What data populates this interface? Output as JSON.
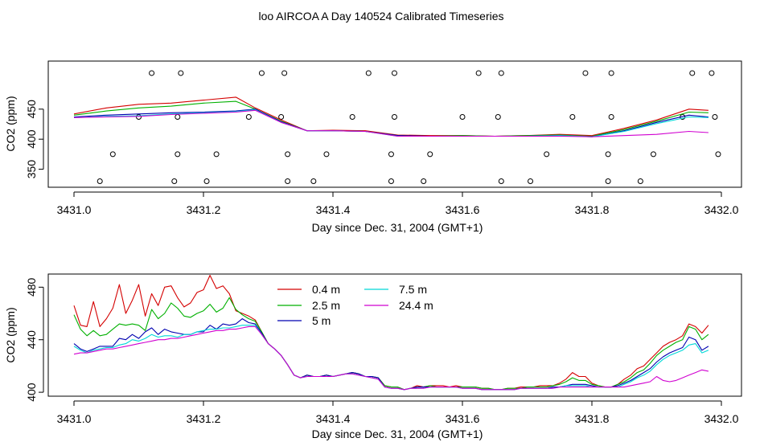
{
  "title": "loo AIRCOA A  Day 140524  Calibrated Timeseries",
  "chart_data": [
    {
      "type": "line",
      "xlabel": "Day since Dec. 31, 2004 (GMT+1)",
      "ylabel": "CO2 (ppm)",
      "xlim": [
        3431.0,
        3432.0
      ],
      "ylim": [
        320,
        530
      ],
      "xticks": [
        3431.0,
        3431.2,
        3431.4,
        3431.6,
        3431.8,
        3432.0
      ],
      "xtick_labels": [
        "3431.0",
        "3431.2",
        "3431.4",
        "3431.6",
        "3431.8",
        "3432.0"
      ],
      "yticks": [
        350,
        400,
        450
      ],
      "ytick_labels": [
        "350",
        "400",
        "450"
      ],
      "grid": false,
      "legend": "none",
      "x": [
        3431.0,
        3431.05,
        3431.1,
        3431.15,
        3431.2,
        3431.25,
        3431.28,
        3431.32,
        3431.36,
        3431.4,
        3431.45,
        3431.5,
        3431.55,
        3431.6,
        3431.65,
        3431.7,
        3431.75,
        3431.8,
        3431.85,
        3431.9,
        3431.95,
        3431.98
      ],
      "series": [
        {
          "color": "#d40000",
          "values": [
            442,
            452,
            458,
            460,
            465,
            470,
            452,
            432,
            414,
            415,
            414,
            407,
            406,
            406,
            405,
            406,
            408,
            406,
            418,
            432,
            450,
            448
          ]
        },
        {
          "color": "#00b000",
          "values": [
            440,
            447,
            452,
            455,
            460,
            463,
            450,
            430,
            414,
            414,
            413,
            406,
            405,
            406,
            405,
            406,
            407,
            405,
            416,
            430,
            445,
            444
          ]
        },
        {
          "color": "#0000b0",
          "values": [
            437,
            440,
            442,
            444,
            445,
            447,
            450,
            429,
            414,
            414,
            413,
            406,
            405,
            405,
            405,
            405,
            406,
            404,
            414,
            428,
            440,
            437
          ]
        },
        {
          "color": "#00d8d8",
          "values": [
            436,
            438,
            439,
            442,
            444,
            446,
            449,
            428,
            414,
            414,
            413,
            405,
            405,
            405,
            405,
            405,
            406,
            404,
            413,
            426,
            437,
            436
          ]
        },
        {
          "color": "#d000d0",
          "values": [
            436,
            437,
            438,
            441,
            443,
            445,
            448,
            428,
            414,
            414,
            413,
            405,
            405,
            405,
            405,
            405,
            405,
            404,
            406,
            408,
            413,
            411
          ]
        }
      ],
      "markers_x": [
        3431.04,
        3431.06,
        3431.1,
        3431.12,
        3431.155,
        3431.16,
        3431.16,
        3431.165,
        3431.205,
        3431.22,
        3431.27,
        3431.29,
        3431.32,
        3431.325,
        3431.33,
        3431.33,
        3431.37,
        3431.39,
        3431.43,
        3431.455,
        3431.49,
        3431.49,
        3431.495,
        3431.495,
        3431.54,
        3431.55,
        3431.6,
        3431.625,
        3431.655,
        3431.66,
        3431.66,
        3431.705,
        3431.73,
        3431.77,
        3431.79,
        3431.825,
        3431.825,
        3431.83,
        3431.83,
        3431.875,
        3431.895,
        3431.94,
        3431.955,
        3431.985,
        3431.99,
        3431.995
      ],
      "markers_y": [
        330,
        375,
        437,
        510,
        330,
        375,
        437,
        510,
        330,
        375,
        437,
        510,
        437,
        510,
        375,
        330,
        330,
        375,
        437,
        510,
        330,
        375,
        437,
        510,
        330,
        375,
        437,
        510,
        437,
        510,
        330,
        330,
        375,
        437,
        510,
        375,
        330,
        437,
        510,
        330,
        375,
        437,
        510,
        510,
        437,
        375
      ]
    },
    {
      "type": "line",
      "xlabel": "Day since Dec. 31, 2004 (GMT+1)",
      "ylabel": "CO2 (ppm)",
      "xlim": [
        3431.0,
        3432.0
      ],
      "ylim": [
        397,
        490
      ],
      "xticks": [
        3431.0,
        3431.2,
        3431.4,
        3431.6,
        3431.8,
        3432.0
      ],
      "xtick_labels": [
        "3431.0",
        "3431.2",
        "3431.4",
        "3431.6",
        "3431.8",
        "3432.0"
      ],
      "yticks": [
        400,
        440,
        480
      ],
      "ytick_labels": [
        "400",
        "440",
        "480"
      ],
      "grid": false,
      "legend": "top-left",
      "x": [
        3431.0,
        3431.01,
        3431.02,
        3431.03,
        3431.04,
        3431.05,
        3431.06,
        3431.07,
        3431.08,
        3431.09,
        3431.1,
        3431.11,
        3431.12,
        3431.13,
        3431.14,
        3431.15,
        3431.16,
        3431.17,
        3431.18,
        3431.19,
        3431.2,
        3431.21,
        3431.22,
        3431.23,
        3431.24,
        3431.25,
        3431.26,
        3431.27,
        3431.28,
        3431.29,
        3431.3,
        3431.31,
        3431.32,
        3431.33,
        3431.34,
        3431.35,
        3431.36,
        3431.37,
        3431.38,
        3431.39,
        3431.4,
        3431.41,
        3431.42,
        3431.43,
        3431.44,
        3431.45,
        3431.46,
        3431.47,
        3431.48,
        3431.49,
        3431.5,
        3431.51,
        3431.52,
        3431.53,
        3431.54,
        3431.55,
        3431.56,
        3431.57,
        3431.58,
        3431.59,
        3431.6,
        3431.61,
        3431.62,
        3431.63,
        3431.64,
        3431.65,
        3431.66,
        3431.67,
        3431.68,
        3431.69,
        3431.7,
        3431.71,
        3431.72,
        3431.73,
        3431.74,
        3431.75,
        3431.76,
        3431.77,
        3431.78,
        3431.79,
        3431.8,
        3431.81,
        3431.82,
        3431.83,
        3431.84,
        3431.85,
        3431.86,
        3431.87,
        3431.88,
        3431.89,
        3431.9,
        3431.91,
        3431.92,
        3431.93,
        3431.94,
        3431.95,
        3431.96,
        3431.97,
        3431.98
      ],
      "series": [
        {
          "name": "0.4 m",
          "color": "#d40000",
          "values": [
            466,
            451,
            450,
            469,
            450,
            456,
            464,
            482,
            460,
            470,
            482,
            458,
            475,
            466,
            480,
            481,
            472,
            465,
            468,
            476,
            478,
            489,
            479,
            481,
            475,
            462,
            460,
            458,
            455,
            446,
            437,
            433,
            428,
            421,
            413,
            411,
            413,
            412,
            412,
            413,
            412,
            413,
            414,
            415,
            414,
            412,
            412,
            411,
            405,
            404,
            404,
            402,
            403,
            405,
            404,
            405,
            405,
            405,
            404,
            405,
            404,
            404,
            404,
            403,
            403,
            402,
            402,
            403,
            403,
            404,
            404,
            404,
            405,
            405,
            405,
            407,
            410,
            415,
            412,
            412,
            407,
            405,
            404,
            404,
            406,
            410,
            413,
            418,
            420,
            425,
            430,
            435,
            438,
            440,
            443,
            452,
            450,
            445,
            451
          ]
        },
        {
          "name": "2.5 m",
          "color": "#00b000",
          "values": [
            459,
            448,
            443,
            447,
            443,
            444,
            448,
            452,
            451,
            452,
            451,
            447,
            463,
            456,
            460,
            468,
            464,
            458,
            457,
            460,
            462,
            467,
            461,
            464,
            472,
            463,
            459,
            456,
            454,
            446,
            437,
            433,
            428,
            421,
            413,
            411,
            413,
            412,
            412,
            413,
            412,
            413,
            414,
            415,
            414,
            412,
            412,
            411,
            405,
            404,
            404,
            402,
            403,
            404,
            404,
            405,
            404,
            404,
            404,
            404,
            404,
            404,
            404,
            403,
            403,
            402,
            402,
            403,
            403,
            403,
            404,
            404,
            404,
            404,
            405,
            406,
            408,
            411,
            409,
            409,
            406,
            405,
            404,
            404,
            406,
            408,
            411,
            415,
            417,
            422,
            428,
            432,
            435,
            438,
            440,
            450,
            448,
            440,
            444
          ]
        },
        {
          "name": "5 m",
          "color": "#0000b0",
          "values": [
            437,
            433,
            431,
            433,
            435,
            435,
            435,
            441,
            440,
            444,
            441,
            446,
            449,
            444,
            448,
            446,
            445,
            444,
            444,
            446,
            446,
            451,
            448,
            452,
            451,
            452,
            456,
            453,
            452,
            445,
            437,
            433,
            428,
            421,
            413,
            411,
            413,
            412,
            412,
            413,
            412,
            413,
            414,
            415,
            414,
            412,
            412,
            411,
            404,
            403,
            403,
            402,
            403,
            404,
            404,
            404,
            404,
            404,
            404,
            404,
            403,
            403,
            403,
            402,
            402,
            402,
            402,
            402,
            402,
            403,
            403,
            403,
            403,
            403,
            404,
            404,
            405,
            406,
            406,
            406,
            405,
            404,
            404,
            404,
            405,
            407,
            409,
            412,
            415,
            418,
            423,
            427,
            430,
            432,
            434,
            442,
            440,
            432,
            435
          ]
        },
        {
          "name": "7.5 m",
          "color": "#00d8d8",
          "values": [
            435,
            432,
            430,
            432,
            433,
            434,
            434,
            436,
            437,
            440,
            439,
            441,
            444,
            442,
            443,
            443,
            442,
            444,
            444,
            446,
            447,
            448,
            448,
            449,
            449,
            450,
            451,
            451,
            451,
            444,
            437,
            433,
            428,
            421,
            413,
            411,
            412,
            412,
            412,
            412,
            412,
            413,
            414,
            414,
            413,
            412,
            411,
            410,
            404,
            403,
            403,
            402,
            403,
            403,
            403,
            404,
            404,
            404,
            404,
            404,
            403,
            403,
            403,
            402,
            402,
            402,
            402,
            402,
            402,
            403,
            403,
            403,
            403,
            403,
            403,
            404,
            405,
            405,
            405,
            405,
            404,
            404,
            404,
            404,
            404,
            406,
            408,
            411,
            413,
            416,
            421,
            425,
            428,
            430,
            432,
            436,
            437,
            430,
            432
          ]
        },
        {
          "name": "24.4 m",
          "color": "#d000d0",
          "values": [
            429,
            430,
            430,
            431,
            432,
            433,
            433,
            434,
            435,
            436,
            437,
            438,
            439,
            440,
            440,
            441,
            441,
            442,
            443,
            444,
            445,
            446,
            447,
            447,
            448,
            448,
            449,
            450,
            450,
            444,
            437,
            433,
            428,
            421,
            413,
            411,
            412,
            412,
            412,
            412,
            412,
            413,
            414,
            414,
            413,
            412,
            411,
            410,
            404,
            403,
            403,
            402,
            403,
            403,
            403,
            404,
            404,
            404,
            404,
            404,
            403,
            403,
            403,
            402,
            402,
            402,
            402,
            402,
            402,
            403,
            403,
            403,
            403,
            403,
            403,
            404,
            404,
            404,
            404,
            404,
            404,
            404,
            404,
            404,
            404,
            404,
            405,
            406,
            407,
            408,
            412,
            409,
            408,
            409,
            411,
            413,
            415,
            417,
            416
          ]
        }
      ]
    }
  ]
}
